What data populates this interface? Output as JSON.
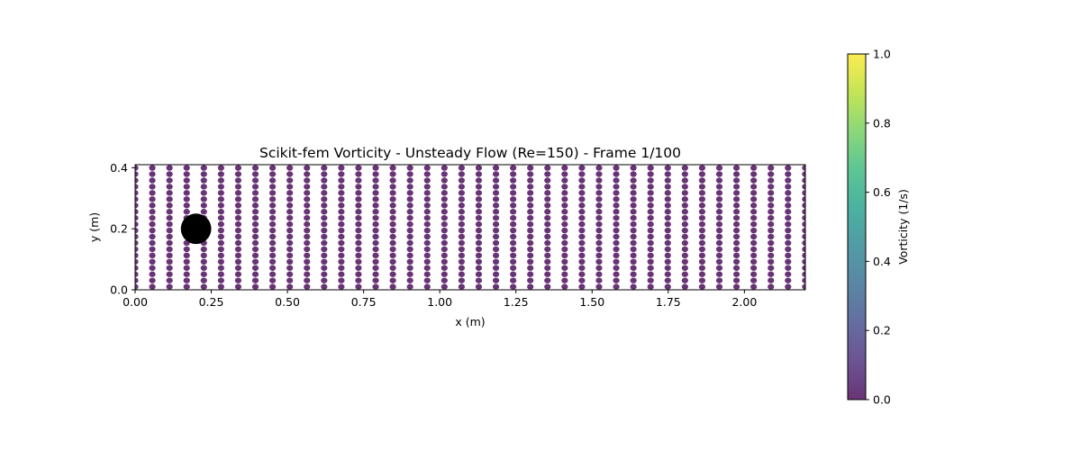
{
  "chart_data": {
    "type": "scatter",
    "title": "Scikit-fem Vorticity - Unsteady Flow (Re=150) - Frame 1/100",
    "xlabel": "x (m)",
    "ylabel": "y (m)",
    "xlim": [
      0,
      2.2
    ],
    "ylim": [
      0,
      0.41
    ],
    "x_ticks": [
      "0.00",
      "0.25",
      "0.50",
      "0.75",
      "1.00",
      "1.25",
      "1.50",
      "1.75",
      "2.00"
    ],
    "x_tick_values": [
      0,
      0.25,
      0.5,
      0.75,
      1.0,
      1.25,
      1.5,
      1.75,
      2.0
    ],
    "y_ticks": [
      "0.0",
      "0.2",
      "0.4"
    ],
    "y_tick_values": [
      0,
      0.2,
      0.4
    ],
    "grid": false,
    "points": {
      "x_start": 0,
      "x_step": 0.0564,
      "x_count": 40,
      "y_start": 0.01,
      "y_step": 0.0205,
      "y_count": 20,
      "value": 0.0,
      "color": "#440154"
    },
    "obstacle": {
      "center": [
        0.2,
        0.2
      ],
      "radius": 0.05,
      "color": "#000000"
    },
    "colorbar": {
      "label": "Vorticity (1/s)",
      "range": [
        0,
        1
      ],
      "ticks": [
        "0.0",
        "0.2",
        "0.4",
        "0.6",
        "0.8",
        "1.0"
      ],
      "tick_values": [
        0,
        0.2,
        0.4,
        0.6,
        0.8,
        1.0
      ],
      "colormap": "viridis",
      "stops": [
        "#440154",
        "#482878",
        "#3e4989",
        "#31688e",
        "#26828e",
        "#1f9e89",
        "#35b779",
        "#6ece58",
        "#b5de2b",
        "#fde725"
      ],
      "alpha": 0.8
    }
  }
}
